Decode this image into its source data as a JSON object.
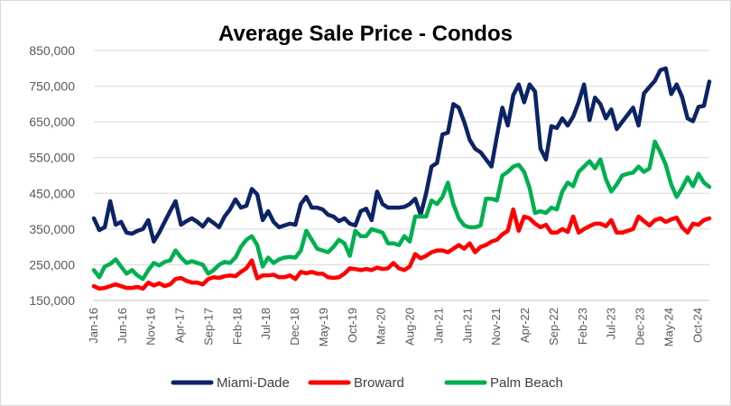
{
  "chart_data": {
    "type": "line",
    "title": "Average Sale Price - Condos",
    "xlabel": "",
    "ylabel": "",
    "ylim": [
      150000,
      850000
    ],
    "yticks": [
      150000,
      250000,
      350000,
      450000,
      550000,
      650000,
      750000,
      850000
    ],
    "ytick_labels": [
      "150,000",
      "250,000",
      "350,000",
      "450,000",
      "550,000",
      "650,000",
      "750,000",
      "850,000"
    ],
    "x_start": "Jan-16",
    "x_end": "Jan-25",
    "xtick_labels": [
      "Jan-16",
      "Jun-16",
      "Nov-16",
      "Apr-17",
      "Sep-17",
      "Feb-18",
      "Jul-18",
      "Dec-18",
      "May-19",
      "Oct-19",
      "Mar-20",
      "Aug-20",
      "Jan-21",
      "Jun-21",
      "Nov-21",
      "Apr-22",
      "Sep-22",
      "Feb-23",
      "Jul-23",
      "Dec-23",
      "May-24",
      "Oct-24"
    ],
    "grid": "horizontal",
    "legend_position": "bottom",
    "series": [
      {
        "name": "Miami-Dade",
        "color": "#0c2466",
        "values": [
          380000,
          347000,
          355000,
          428000,
          362000,
          370000,
          340000,
          337000,
          345000,
          350000,
          375000,
          315000,
          340000,
          370000,
          400000,
          428000,
          362000,
          372000,
          380000,
          370000,
          357000,
          378000,
          367000,
          355000,
          385000,
          405000,
          433000,
          410000,
          415000,
          462000,
          447000,
          375000,
          400000,
          370000,
          355000,
          360000,
          365000,
          362000,
          420000,
          440000,
          410000,
          410000,
          405000,
          390000,
          385000,
          372000,
          380000,
          365000,
          360000,
          400000,
          407000,
          375000,
          455000,
          420000,
          410000,
          410000,
          410000,
          412000,
          420000,
          435000,
          390000,
          450000,
          525000,
          535000,
          615000,
          620000,
          700000,
          690000,
          650000,
          600000,
          575000,
          565000,
          545000,
          525000,
          610000,
          690000,
          640000,
          725000,
          755000,
          705000,
          755000,
          735000,
          575000,
          545000,
          638000,
          633000,
          660000,
          640000,
          665000,
          705000,
          755000,
          655000,
          718000,
          700000,
          660000,
          685000,
          630000,
          650000,
          670000,
          690000,
          640000,
          730000,
          748000,
          765000,
          795000,
          800000,
          728000,
          755000,
          720000,
          660000,
          652000,
          692000,
          695000,
          763000
        ]
      },
      {
        "name": "Broward",
        "color": "#ff0000",
        "values": [
          190000,
          183000,
          185000,
          190000,
          195000,
          190000,
          185000,
          185000,
          188000,
          183000,
          200000,
          192000,
          198000,
          190000,
          195000,
          210000,
          213000,
          205000,
          200000,
          200000,
          195000,
          210000,
          215000,
          213000,
          218000,
          220000,
          218000,
          230000,
          240000,
          262000,
          212000,
          220000,
          220000,
          222000,
          215000,
          215000,
          220000,
          210000,
          230000,
          226000,
          230000,
          225000,
          225000,
          215000,
          213000,
          215000,
          225000,
          240000,
          238000,
          235000,
          238000,
          235000,
          242000,
          238000,
          240000,
          255000,
          240000,
          235000,
          245000,
          280000,
          268000,
          275000,
          285000,
          290000,
          290000,
          285000,
          295000,
          305000,
          295000,
          310000,
          285000,
          300000,
          305000,
          315000,
          320000,
          335000,
          345000,
          405000,
          345000,
          385000,
          380000,
          365000,
          355000,
          362000,
          340000,
          340000,
          350000,
          342000,
          385000,
          340000,
          350000,
          358000,
          365000,
          365000,
          358000,
          375000,
          340000,
          340000,
          345000,
          350000,
          385000,
          372000,
          360000,
          375000,
          380000,
          370000,
          377000,
          382000,
          355000,
          340000,
          365000,
          362000,
          375000,
          380000
        ]
      },
      {
        "name": "Palm Beach",
        "color": "#00b050",
        "values": [
          235000,
          215000,
          245000,
          252000,
          265000,
          245000,
          225000,
          235000,
          220000,
          210000,
          235000,
          255000,
          248000,
          258000,
          262000,
          290000,
          270000,
          255000,
          260000,
          255000,
          250000,
          225000,
          235000,
          250000,
          258000,
          255000,
          270000,
          300000,
          320000,
          330000,
          305000,
          245000,
          270000,
          255000,
          265000,
          270000,
          272000,
          270000,
          290000,
          345000,
          320000,
          295000,
          290000,
          285000,
          300000,
          320000,
          310000,
          275000,
          345000,
          330000,
          330000,
          350000,
          345000,
          340000,
          310000,
          310000,
          305000,
          330000,
          315000,
          385000,
          385000,
          385000,
          430000,
          420000,
          440000,
          480000,
          420000,
          380000,
          360000,
          355000,
          355000,
          360000,
          435000,
          435000,
          430000,
          500000,
          510000,
          525000,
          530000,
          510000,
          465000,
          395000,
          400000,
          395000,
          410000,
          405000,
          455000,
          480000,
          470000,
          510000,
          525000,
          540000,
          520000,
          545000,
          490000,
          455000,
          475000,
          500000,
          505000,
          508000,
          525000,
          510000,
          520000,
          595000,
          565000,
          530000,
          475000,
          440000,
          465000,
          495000,
          470000,
          505000,
          480000,
          468000
        ]
      }
    ]
  }
}
